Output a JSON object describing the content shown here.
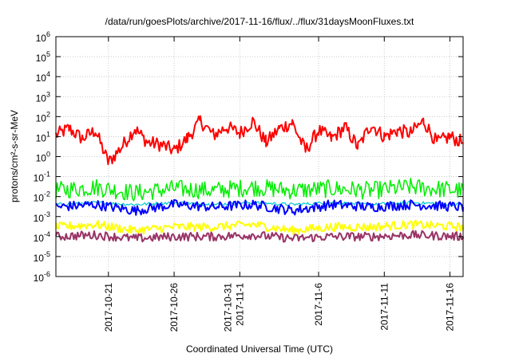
{
  "chart_data": {
    "type": "line",
    "title": "/data/run/goesPlots/archive/2017-11-16/flux/../flux/31daysMoonFluxes.txt",
    "xlabel": "Coordinated Universal Time (UTC)",
    "ylabel": "protons/cm²-s-sr-MeV",
    "y_scale": "log",
    "ylim": [
      1e-06,
      1000000.0
    ],
    "y_ticks": [
      {
        "exp": -6,
        "label_base": "10",
        "label_exp": "-6"
      },
      {
        "exp": -5,
        "label_base": "10",
        "label_exp": "-5"
      },
      {
        "exp": -4,
        "label_base": "10",
        "label_exp": "-4"
      },
      {
        "exp": -3,
        "label_base": "10",
        "label_exp": "-3"
      },
      {
        "exp": -2,
        "label_base": "10",
        "label_exp": "-2"
      },
      {
        "exp": -1,
        "label_base": "10",
        "label_exp": "-1"
      },
      {
        "exp": 0,
        "label_base": "10",
        "label_exp": "0"
      },
      {
        "exp": 1,
        "label_base": "10",
        "label_exp": "1"
      },
      {
        "exp": 2,
        "label_base": "10",
        "label_exp": "2"
      },
      {
        "exp": 3,
        "label_base": "10",
        "label_exp": "3"
      },
      {
        "exp": 4,
        "label_base": "10",
        "label_exp": "4"
      },
      {
        "exp": 5,
        "label_base": "10",
        "label_exp": "5"
      },
      {
        "exp": 6,
        "label_base": "10",
        "label_exp": "6"
      }
    ],
    "xlim": [
      "2017-10-17",
      "2017-11-17"
    ],
    "x_ticks": [
      {
        "date": "2017-10-21",
        "lines": [
          "2017-10-21"
        ]
      },
      {
        "date": "2017-10-26",
        "lines": [
          "2017-10-26"
        ]
      },
      {
        "date": "2017-10-31",
        "lines": [
          "2017-10-31",
          "2017-11-1"
        ]
      },
      {
        "date": "2017-11-06",
        "lines": [
          "2017-11-6"
        ]
      },
      {
        "date": "2017-11-11",
        "lines": [
          "2017-11-11"
        ]
      },
      {
        "date": "2017-11-16",
        "lines": [
          "2017-11-16"
        ]
      }
    ],
    "grid": true,
    "legend": "none",
    "series_style": [
      {
        "color": "#ff0000",
        "width": 2.0
      },
      {
        "color": "#00ee00",
        "width": 1.5
      },
      {
        "color": "#00c8d0",
        "width": 1.2
      },
      {
        "color": "#0000ff",
        "width": 2.0
      },
      {
        "color": "#ffff00",
        "width": 2.0
      },
      {
        "color": "#993366",
        "width": 2.0
      }
    ],
    "series": [
      {
        "color": "#ff0000",
        "x": [
          "2017-10-17",
          "2017-10-18",
          "2017-10-19",
          "2017-10-20",
          "2017-10-21",
          "2017-10-22",
          "2017-10-23",
          "2017-10-24",
          "2017-10-25",
          "2017-10-26",
          "2017-10-27",
          "2017-10-28",
          "2017-10-29",
          "2017-10-30",
          "2017-10-31",
          "2017-11-01",
          "2017-11-02",
          "2017-11-03",
          "2017-11-04",
          "2017-11-05",
          "2017-11-06",
          "2017-11-07",
          "2017-11-08",
          "2017-11-09",
          "2017-11-10",
          "2017-11-11",
          "2017-11-12",
          "2017-11-13",
          "2017-11-14",
          "2017-11-15",
          "2017-11-16",
          "2017-11-17"
        ],
        "y": [
          12,
          25,
          8,
          20,
          0.5,
          3,
          25,
          5,
          4,
          2,
          8,
          60,
          12,
          30,
          15,
          60,
          5,
          25,
          50,
          2,
          20,
          8,
          30,
          3,
          40,
          10,
          20,
          15,
          60,
          5,
          10,
          5
        ]
      },
      {
        "color": "#00ee00",
        "x": [
          "2017-10-17",
          "2017-10-20",
          "2017-10-23",
          "2017-10-26",
          "2017-10-29",
          "2017-11-01",
          "2017-11-04",
          "2017-11-07",
          "2017-11-10",
          "2017-11-13",
          "2017-11-17"
        ],
        "y": [
          0.02,
          0.03,
          0.015,
          0.025,
          0.02,
          0.03,
          0.02,
          0.025,
          0.02,
          0.03,
          0.02
        ]
      },
      {
        "color": "#00c8d0",
        "x": [
          "2017-10-17",
          "2017-10-20",
          "2017-10-23",
          "2017-10-26",
          "2017-10-29",
          "2017-11-01",
          "2017-11-04",
          "2017-11-07",
          "2017-11-10",
          "2017-11-13",
          "2017-11-17"
        ],
        "y": [
          0.004,
          0.005,
          0.004,
          0.005,
          0.004,
          0.005,
          0.004,
          0.005,
          0.004,
          0.005,
          0.004
        ]
      },
      {
        "color": "#0000ff",
        "x": [
          "2017-10-17",
          "2017-10-20",
          "2017-10-23",
          "2017-10-26",
          "2017-10-29",
          "2017-11-01",
          "2017-11-04",
          "2017-11-07",
          "2017-11-10",
          "2017-11-13",
          "2017-11-17"
        ],
        "y": [
          0.003,
          0.004,
          0.002,
          0.004,
          0.003,
          0.004,
          0.002,
          0.004,
          0.003,
          0.004,
          0.003
        ]
      },
      {
        "color": "#ffff00",
        "x": [
          "2017-10-17",
          "2017-10-20",
          "2017-10-23",
          "2017-10-26",
          "2017-10-29",
          "2017-11-01",
          "2017-11-04",
          "2017-11-07",
          "2017-11-10",
          "2017-11-13",
          "2017-11-17"
        ],
        "y": [
          0.0003,
          0.0004,
          0.0002,
          0.0003,
          0.0003,
          0.0004,
          0.0002,
          0.0003,
          0.0003,
          0.0004,
          0.0003
        ]
      },
      {
        "color": "#993366",
        "x": [
          "2017-10-17",
          "2017-10-20",
          "2017-10-23",
          "2017-10-26",
          "2017-10-29",
          "2017-11-01",
          "2017-11-04",
          "2017-11-07",
          "2017-11-10",
          "2017-11-13",
          "2017-11-17"
        ],
        "y": [
          0.0001,
          0.00012,
          8e-05,
          0.0001,
          0.0001,
          0.00012,
          8e-05,
          0.0001,
          0.0001,
          0.00012,
          0.0001
        ]
      }
    ]
  }
}
